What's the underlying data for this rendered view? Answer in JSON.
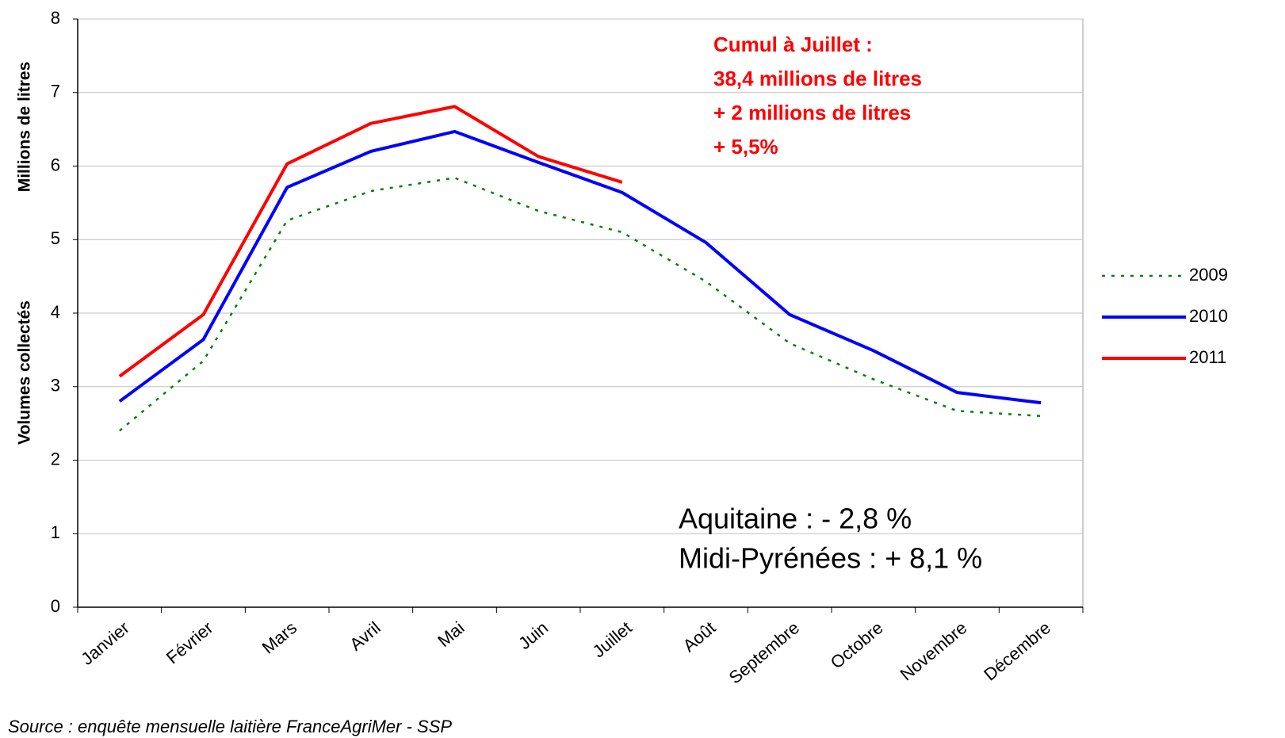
{
  "chart_data": {
    "type": "line",
    "ylabel": [
      "Millions de litres",
      "Volumes collectés"
    ],
    "categories": [
      "Janvier",
      "Février",
      "Mars",
      "Avril",
      "Mai",
      "Juin",
      "Juillet",
      "Août",
      "Septembre",
      "Octobre",
      "Novembre",
      "Décembre"
    ],
    "series": [
      {
        "name": "2009",
        "color": "#008000",
        "dashed": true,
        "values": [
          2.4,
          3.35,
          5.26,
          5.66,
          5.84,
          5.39,
          5.1,
          4.43,
          3.59,
          3.1,
          2.67,
          2.6
        ]
      },
      {
        "name": "2010",
        "color": "#0000ff",
        "dashed": false,
        "values": [
          2.8,
          3.64,
          5.71,
          6.2,
          6.47,
          6.05,
          5.64,
          4.96,
          3.98,
          3.49,
          2.92,
          2.78
        ]
      },
      {
        "name": "2011",
        "color": "#ff0000",
        "dashed": false,
        "values": [
          3.14,
          3.98,
          6.03,
          6.58,
          6.81,
          6.13,
          5.78,
          null,
          null,
          null,
          null,
          null
        ]
      }
    ],
    "ylim": [
      0,
      8
    ],
    "yticks": [
      0,
      1,
      2,
      3,
      4,
      5,
      6,
      7,
      8
    ],
    "grid": true,
    "legend": "right",
    "annotations": [
      {
        "color": "#ff0000",
        "lines": [
          "Cumul à Juillet :",
          "38,4 millions de litres",
          "+ 2 millions de litres",
          "+ 5,5%"
        ]
      },
      {
        "color": "#000000",
        "lines": [
          "Aquitaine : - 2,8 %",
          "Midi-Pyrénées : + 8,1 %"
        ]
      }
    ],
    "source": "Source : enquête mensuelle laitière FranceAgriMer - SSP"
  }
}
